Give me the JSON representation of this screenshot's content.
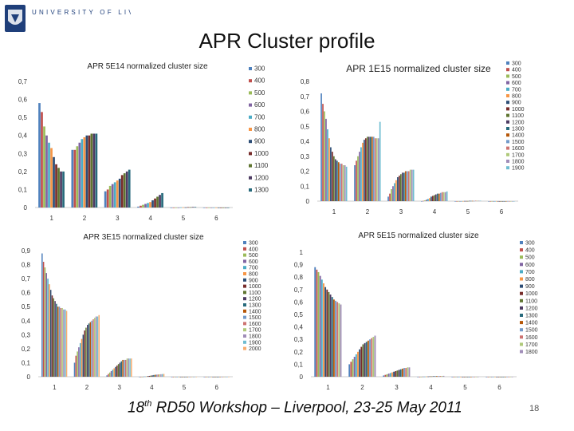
{
  "header": {
    "logo_text": "UNIVERSITY OF LIVERPOOL",
    "slide_title": "APR Cluster profile"
  },
  "footer": {
    "prefix": "18",
    "superscript": "th",
    "rest": " RD50 Workshop – Liverpool, 23-25 May 2011",
    "page_number": "18"
  },
  "series_colors": [
    "#4f81bd",
    "#c0504d",
    "#9bbb59",
    "#8064a2",
    "#4bacc6",
    "#f79646",
    "#2c4d75",
    "#772c2a",
    "#5f7530",
    "#4d3b62",
    "#276a7c",
    "#b65708",
    "#729aca",
    "#cd7371",
    "#afc97a",
    "#a08db8",
    "#6fbdd1",
    "#f9ac6e",
    "#7ea3cf"
  ],
  "chart_data": [
    {
      "type": "bar",
      "title": "APR 5E14 normalized cluster size",
      "categories": [
        "1",
        "2",
        "3",
        "4",
        "5",
        "6"
      ],
      "ylim": [
        0,
        0.7
      ],
      "yticks": [
        "0",
        "0,1",
        "0,2",
        "0,3",
        "0,4",
        "0,5",
        "0,6",
        "0,7"
      ],
      "legend_position": "right",
      "series": [
        {
          "name": "300",
          "values": [
            0.58,
            0.32,
            0.09,
            0.005,
            0.0,
            0.0
          ]
        },
        {
          "name": "400",
          "values": [
            0.53,
            0.32,
            0.1,
            0.01,
            0.0,
            0.0
          ]
        },
        {
          "name": "500",
          "values": [
            0.45,
            0.34,
            0.12,
            0.015,
            0.0,
            0.0
          ]
        },
        {
          "name": "600",
          "values": [
            0.4,
            0.36,
            0.13,
            0.02,
            0.0,
            0.0
          ]
        },
        {
          "name": "700",
          "values": [
            0.36,
            0.38,
            0.14,
            0.025,
            0.001,
            0.0
          ]
        },
        {
          "name": "800",
          "values": [
            0.33,
            0.39,
            0.15,
            0.03,
            0.001,
            0.0
          ]
        },
        {
          "name": "900",
          "values": [
            0.28,
            0.4,
            0.16,
            0.04,
            0.001,
            0.0
          ]
        },
        {
          "name": "1000",
          "values": [
            0.24,
            0.4,
            0.18,
            0.05,
            0.002,
            0.0
          ]
        },
        {
          "name": "1100",
          "values": [
            0.22,
            0.41,
            0.19,
            0.06,
            0.002,
            0.0
          ]
        },
        {
          "name": "1200",
          "values": [
            0.2,
            0.41,
            0.2,
            0.07,
            0.003,
            0.0
          ]
        },
        {
          "name": "1300",
          "values": [
            0.2,
            0.41,
            0.21,
            0.08,
            0.003,
            0.0
          ]
        }
      ]
    },
    {
      "type": "bar",
      "title": "APR 1E15 normalized cluster size",
      "categories": [
        "1",
        "2",
        "3",
        "4",
        "5",
        "6"
      ],
      "ylim": [
        0,
        0.8
      ],
      "yticks": [
        "0",
        "0,1",
        "0,2",
        "0,3",
        "0,4",
        "0,5",
        "0,6",
        "0,7",
        "0,8"
      ],
      "legend_position": "right",
      "series": [
        {
          "name": "300",
          "values": [
            0.72,
            0.24,
            0.03,
            0.0,
            0.0,
            0.0
          ]
        },
        {
          "name": "400",
          "values": [
            0.65,
            0.27,
            0.05,
            0.002,
            0.0,
            0.0
          ]
        },
        {
          "name": "500",
          "values": [
            0.6,
            0.3,
            0.08,
            0.005,
            0.0,
            0.0
          ]
        },
        {
          "name": "600",
          "values": [
            0.55,
            0.33,
            0.1,
            0.01,
            0.0,
            0.0
          ]
        },
        {
          "name": "700",
          "values": [
            0.48,
            0.36,
            0.12,
            0.015,
            0.0,
            0.0
          ]
        },
        {
          "name": "800",
          "values": [
            0.42,
            0.39,
            0.14,
            0.02,
            0.0,
            0.0
          ]
        },
        {
          "name": "900",
          "values": [
            0.36,
            0.41,
            0.16,
            0.03,
            0.001,
            0.0
          ]
        },
        {
          "name": "1000",
          "values": [
            0.33,
            0.42,
            0.17,
            0.035,
            0.001,
            0.0
          ]
        },
        {
          "name": "1100",
          "values": [
            0.3,
            0.43,
            0.18,
            0.04,
            0.001,
            0.0
          ]
        },
        {
          "name": "1200",
          "values": [
            0.28,
            0.43,
            0.19,
            0.045,
            0.002,
            0.0
          ]
        },
        {
          "name": "1300",
          "values": [
            0.27,
            0.43,
            0.19,
            0.05,
            0.002,
            0.0
          ]
        },
        {
          "name": "1400",
          "values": [
            0.26,
            0.43,
            0.2,
            0.05,
            0.002,
            0.0
          ]
        },
        {
          "name": "1500",
          "values": [
            0.25,
            0.43,
            0.2,
            0.055,
            0.002,
            0.0
          ]
        },
        {
          "name": "1600",
          "values": [
            0.25,
            0.42,
            0.2,
            0.06,
            0.003,
            0.0
          ]
        },
        {
          "name": "1700",
          "values": [
            0.24,
            0.42,
            0.21,
            0.06,
            0.003,
            0.0
          ]
        },
        {
          "name": "1800",
          "values": [
            0.24,
            0.42,
            0.21,
            0.06,
            0.003,
            0.0
          ]
        },
        {
          "name": "1900",
          "values": [
            0.23,
            0.53,
            0.21,
            0.065,
            0.003,
            0.0
          ]
        }
      ]
    },
    {
      "type": "bar",
      "title": "APR 3E15 normalized cluster size",
      "categories": [
        "1",
        "2",
        "3",
        "4",
        "5",
        "6"
      ],
      "ylim": [
        0,
        0.9
      ],
      "yticks": [
        "0",
        "0,1",
        "0,2",
        "0,3",
        "0,4",
        "0,5",
        "0,6",
        "0,7",
        "0,8",
        "0,9"
      ],
      "legend_position": "right",
      "series": [
        {
          "name": "300",
          "values": [
            0.88,
            0.1,
            0.01,
            0.0,
            0.0,
            0.0
          ]
        },
        {
          "name": "400",
          "values": [
            0.82,
            0.15,
            0.02,
            0.0,
            0.0,
            0.0
          ]
        },
        {
          "name": "500",
          "values": [
            0.78,
            0.18,
            0.03,
            0.0,
            0.0,
            0.0
          ]
        },
        {
          "name": "600",
          "values": [
            0.74,
            0.21,
            0.04,
            0.001,
            0.0,
            0.0
          ]
        },
        {
          "name": "700",
          "values": [
            0.7,
            0.24,
            0.05,
            0.002,
            0.0,
            0.0
          ]
        },
        {
          "name": "800",
          "values": [
            0.66,
            0.27,
            0.06,
            0.003,
            0.0,
            0.0
          ]
        },
        {
          "name": "900",
          "values": [
            0.62,
            0.3,
            0.07,
            0.005,
            0.0,
            0.0
          ]
        },
        {
          "name": "1000",
          "values": [
            0.58,
            0.33,
            0.08,
            0.006,
            0.0,
            0.0
          ]
        },
        {
          "name": "1100",
          "values": [
            0.56,
            0.35,
            0.09,
            0.008,
            0.0,
            0.0
          ]
        },
        {
          "name": "1200",
          "values": [
            0.54,
            0.37,
            0.1,
            0.01,
            0.0,
            0.0
          ]
        },
        {
          "name": "1300",
          "values": [
            0.52,
            0.38,
            0.11,
            0.012,
            0.0,
            0.0
          ]
        },
        {
          "name": "1400",
          "values": [
            0.5,
            0.39,
            0.12,
            0.014,
            0.0,
            0.0
          ]
        },
        {
          "name": "1500",
          "values": [
            0.5,
            0.4,
            0.12,
            0.015,
            0.0,
            0.0
          ]
        },
        {
          "name": "1600",
          "values": [
            0.49,
            0.41,
            0.12,
            0.016,
            0.0,
            0.0
          ]
        },
        {
          "name": "1700",
          "values": [
            0.49,
            0.42,
            0.13,
            0.017,
            0.0,
            0.0
          ]
        },
        {
          "name": "1800",
          "values": [
            0.48,
            0.43,
            0.13,
            0.018,
            0.0,
            0.0
          ]
        },
        {
          "name": "1900",
          "values": [
            0.48,
            0.43,
            0.13,
            0.019,
            0.0,
            0.0
          ]
        },
        {
          "name": "2000",
          "values": [
            0.47,
            0.44,
            0.13,
            0.02,
            0.0,
            0.0
          ]
        }
      ]
    },
    {
      "type": "bar",
      "title": "APR 5E15 normalized cluster size",
      "categories": [
        "1",
        "2",
        "3",
        "4",
        "5",
        "6"
      ],
      "ylim": [
        0,
        1
      ],
      "yticks": [
        "0",
        "0,1",
        "0,2",
        "0,3",
        "0,4",
        "0,5",
        "0,6",
        "0,7",
        "0,8",
        "0,9",
        "1"
      ],
      "legend_position": "right",
      "series": [
        {
          "name": "300",
          "values": [
            0.88,
            0.1,
            0.01,
            0.0,
            0.0,
            0.0
          ]
        },
        {
          "name": "400",
          "values": [
            0.86,
            0.12,
            0.015,
            0.0,
            0.0,
            0.0
          ]
        },
        {
          "name": "500",
          "values": [
            0.84,
            0.14,
            0.02,
            0.0,
            0.0,
            0.0
          ]
        },
        {
          "name": "600",
          "values": [
            0.81,
            0.16,
            0.025,
            0.001,
            0.0,
            0.0
          ]
        },
        {
          "name": "700",
          "values": [
            0.78,
            0.18,
            0.03,
            0.001,
            0.0,
            0.0
          ]
        },
        {
          "name": "800",
          "values": [
            0.75,
            0.2,
            0.035,
            0.002,
            0.0,
            0.0
          ]
        },
        {
          "name": "900",
          "values": [
            0.72,
            0.22,
            0.04,
            0.002,
            0.0,
            0.0
          ]
        },
        {
          "name": "1000",
          "values": [
            0.7,
            0.24,
            0.045,
            0.003,
            0.0,
            0.0
          ]
        },
        {
          "name": "1100",
          "values": [
            0.68,
            0.26,
            0.05,
            0.003,
            0.0,
            0.0
          ]
        },
        {
          "name": "1200",
          "values": [
            0.66,
            0.27,
            0.055,
            0.004,
            0.0,
            0.0
          ]
        },
        {
          "name": "1300",
          "values": [
            0.64,
            0.28,
            0.06,
            0.004,
            0.0,
            0.0
          ]
        },
        {
          "name": "1400",
          "values": [
            0.62,
            0.29,
            0.065,
            0.005,
            0.0,
            0.0
          ]
        },
        {
          "name": "1500",
          "values": [
            0.61,
            0.3,
            0.07,
            0.005,
            0.0,
            0.0
          ]
        },
        {
          "name": "1600",
          "values": [
            0.6,
            0.31,
            0.07,
            0.006,
            0.0,
            0.0
          ]
        },
        {
          "name": "1700",
          "values": [
            0.59,
            0.32,
            0.075,
            0.006,
            0.0,
            0.0
          ]
        },
        {
          "name": "1800",
          "values": [
            0.58,
            0.33,
            0.075,
            0.007,
            0.0,
            0.0
          ]
        }
      ]
    }
  ]
}
